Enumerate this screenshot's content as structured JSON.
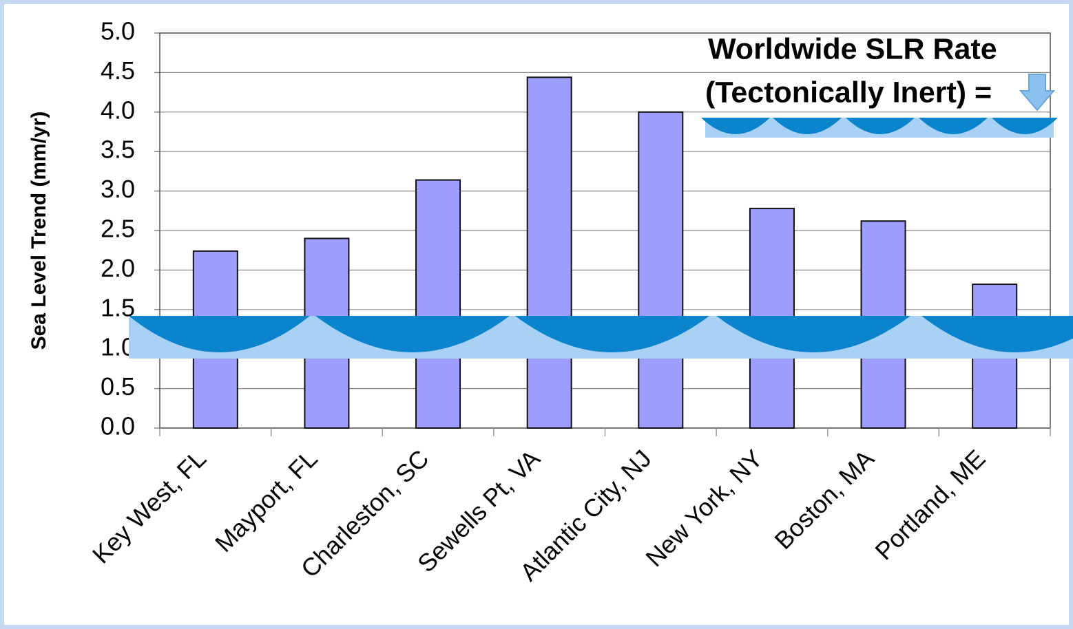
{
  "chart_data": {
    "type": "bar",
    "y_label": "Sea Level Trend (mm/yr)",
    "annotation": [
      "Worldwide SLR Rate",
      "(Tectonically Inert) ="
    ],
    "categories": [
      "Key West, FL",
      "Mayport, FL",
      "Charleston, SC",
      "Sewells Pt, VA",
      "Atlantic City, NJ",
      "New York, NY",
      "Boston, MA",
      "Portland, ME"
    ],
    "values": [
      2.24,
      2.4,
      3.14,
      4.44,
      4.0,
      2.78,
      2.62,
      1.82
    ],
    "color": "#9e9eff",
    "ylim": [
      0,
      5
    ],
    "yticks": [
      {
        "value": 0,
        "label": "0.0"
      },
      0.5,
      {
        "value": 1,
        "label": "1.0"
      },
      1.5,
      {
        "value": 2,
        "label": "2.0"
      },
      2.5,
      {
        "value": 3,
        "label": "3.0"
      },
      3.5,
      {
        "value": 4,
        "label": "4.0"
      },
      4.5,
      {
        "value": 5,
        "label": "5.0"
      }
    ],
    "grid": true
  }
}
